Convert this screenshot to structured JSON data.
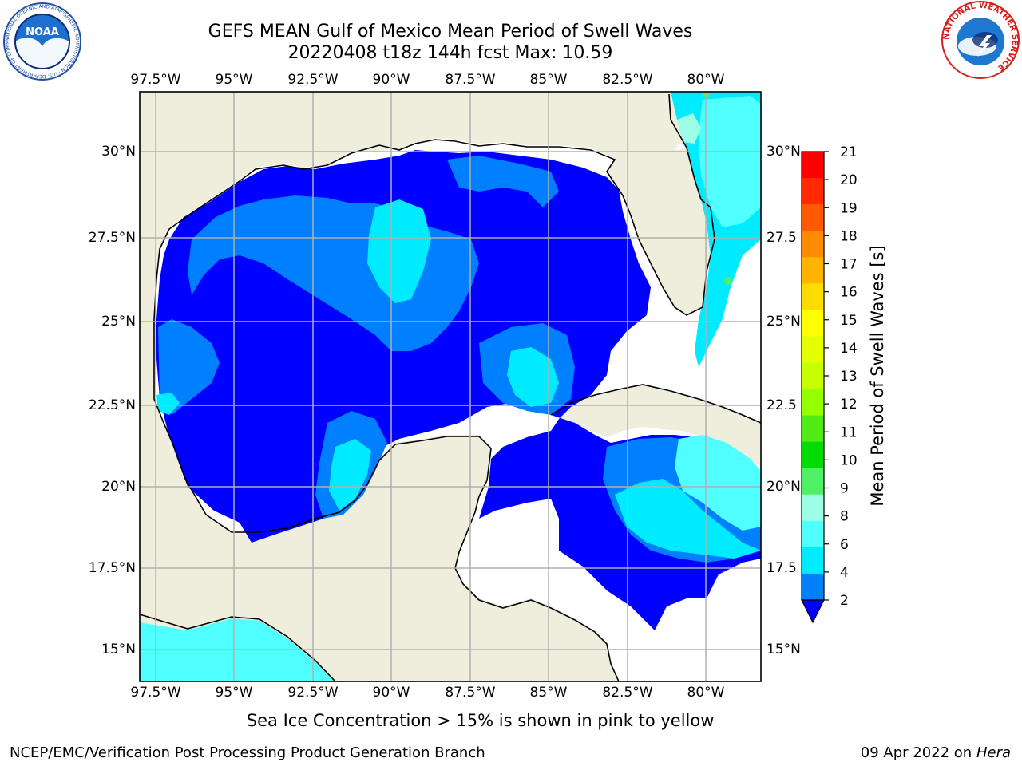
{
  "header": {
    "title_line1": "GEFS MEAN Gulf of Mexico Mean Period of Swell Waves",
    "title_line2": "20220408 t18z 144h fcst   Max: 10.59"
  },
  "logos": {
    "left": {
      "name": "NOAA",
      "ring_text": "NATIONAL OCEANIC AND ATMOSPHERIC ADMINISTRATION · U.S. DEPARTMENT OF COMMERCE ·",
      "accent": "#1f4fa3"
    },
    "right": {
      "ring_text": "NATIONAL WEATHER SERVICE",
      "accent": "#d82020"
    }
  },
  "map": {
    "lon_ticks": [
      "97.5°W",
      "95°W",
      "92.5°W",
      "90°W",
      "87.5°W",
      "85°W",
      "82.5°W",
      "80°W"
    ],
    "lat_ticks_left": [
      "30°N",
      "27.5°N",
      "25°N",
      "22.5°N",
      "20°N",
      "17.5°N",
      "15°N"
    ],
    "lat_ticks_right": [
      "30°N",
      "27.5",
      "25°N",
      "22.5",
      "20°N",
      "17.5",
      "15°N"
    ],
    "land_color": "#efeedd",
    "ocean_no_data_color": "#ffffff",
    "gridlines": true
  },
  "colorbar": {
    "label": "Mean Period of Swell Waves [s]",
    "tick_labels": [
      "21",
      "20",
      "19",
      "18",
      "17",
      "16",
      "15",
      "14",
      "13",
      "12",
      "11",
      "10",
      "9",
      "8",
      "6",
      "4",
      "2"
    ],
    "colors_top_to_bottom": [
      "#ff0000",
      "#ff2a00",
      "#ff5a00",
      "#ff8c00",
      "#ffb400",
      "#ffdc00",
      "#ffff00",
      "#e6ff00",
      "#c8ff00",
      "#96ff00",
      "#50eb14",
      "#00dc00",
      "#50f064",
      "#9cffe6",
      "#50ffff",
      "#00ebff",
      "#0080ff"
    ],
    "extend_color": "#0000ff"
  },
  "footer": {
    "caption": "Sea Ice Concentration > 15% is shown in pink to yellow",
    "credit": "NCEP/EMC/Verification Post Processing Product Generation Branch",
    "date_prefix": "09 Apr 2022 on ",
    "machine": "Hera"
  }
}
